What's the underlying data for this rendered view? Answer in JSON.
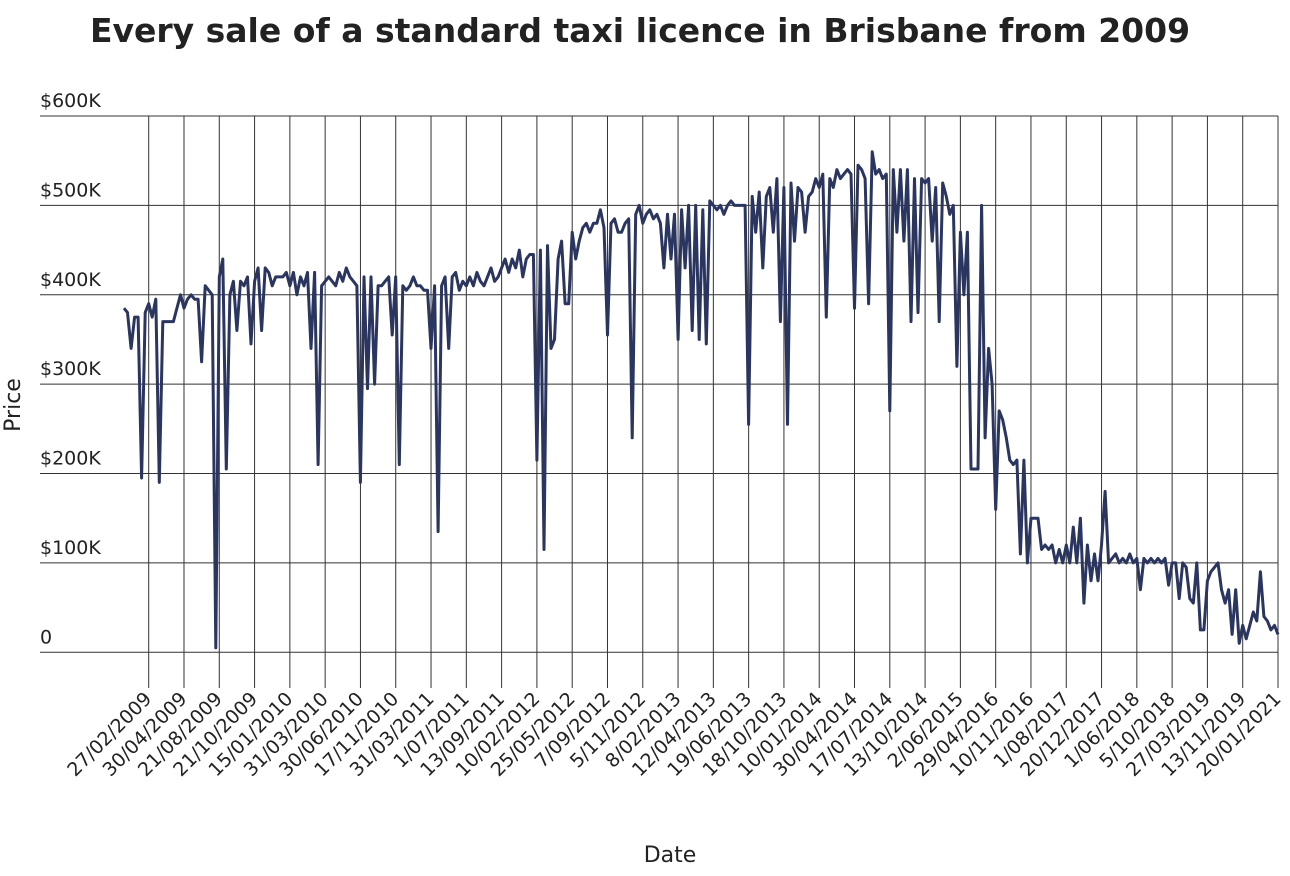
{
  "chart_data": {
    "type": "line",
    "title": "Every sale of a standard taxi licence in Brisbane from 2009",
    "xlabel": "Date",
    "ylabel": "Price",
    "grid": true,
    "categories": [
      null,
      null,
      null,
      null,
      null,
      null,
      null,
      "27/02/2009",
      null,
      null,
      null,
      null,
      null,
      null,
      null,
      null,
      null,
      "30/04/2009",
      null,
      null,
      null,
      null,
      null,
      null,
      null,
      null,
      null,
      "21/08/2009",
      null,
      null,
      null,
      null,
      null,
      null,
      null,
      null,
      null,
      "21/10/2009",
      null,
      null,
      null,
      null,
      null,
      null,
      null,
      null,
      null,
      "15/01/2010",
      null,
      null,
      null,
      null,
      null,
      null,
      null,
      null,
      null,
      "31/03/2010",
      null,
      null,
      null,
      null,
      null,
      null,
      null,
      null,
      null,
      "30/06/2010",
      null,
      null,
      null,
      null,
      null,
      null,
      null,
      null,
      null,
      "17/11/2010",
      null,
      null,
      null,
      null,
      null,
      null,
      null,
      null,
      null,
      "31/03/2011",
      null,
      null,
      null,
      null,
      null,
      null,
      null,
      null,
      null,
      "1/07/2011",
      null,
      null,
      null,
      null,
      null,
      null,
      null,
      null,
      null,
      "13/09/2011",
      null,
      null,
      null,
      null,
      null,
      null,
      null,
      null,
      null,
      "10/02/2012",
      null,
      null,
      null,
      null,
      null,
      null,
      null,
      null,
      null,
      "25/05/2012",
      null,
      null,
      null,
      null,
      null,
      null,
      null,
      null,
      null,
      "7/09/2012",
      null,
      null,
      null,
      null,
      null,
      null,
      null,
      null,
      null,
      "5/11/2012",
      null,
      null,
      null,
      null,
      null,
      null,
      null,
      null,
      null,
      "8/02/2013",
      null,
      null,
      null,
      null,
      null,
      null,
      null,
      null,
      null,
      "12/04/2013",
      null,
      null,
      null,
      null,
      null,
      null,
      null,
      null,
      null,
      "19/06/2013",
      null,
      null,
      null,
      null,
      null,
      null,
      null,
      null,
      null,
      "18/10/2013",
      null,
      null,
      null,
      null,
      null,
      null,
      null,
      null,
      null,
      "10/01/2014",
      null,
      null,
      null,
      null,
      null,
      null,
      null,
      null,
      null,
      "30/04/2014",
      null,
      null,
      null,
      null,
      null,
      null,
      null,
      null,
      null,
      "17/07/2014",
      null,
      null,
      null,
      null,
      null,
      null,
      null,
      null,
      null,
      "13/10/2014",
      null,
      null,
      null,
      null,
      null,
      null,
      null,
      null,
      null,
      "2/06/2015",
      null,
      null,
      null,
      null,
      null,
      null,
      null,
      null,
      null,
      "29/04/2016",
      null,
      null,
      null,
      null,
      null,
      null,
      null,
      null,
      null,
      "10/11/2016",
      null,
      null,
      null,
      null,
      null,
      null,
      null,
      null,
      null,
      "1/08/2017",
      null,
      null,
      null,
      null,
      null,
      null,
      null,
      null,
      null,
      "20/12/2017",
      null,
      null,
      null,
      null,
      null,
      null,
      null,
      null,
      null,
      "1/06/2018",
      null,
      null,
      null,
      null,
      null,
      null,
      null,
      null,
      null,
      "5/10/2018",
      null,
      null,
      null,
      null,
      null,
      null,
      null,
      null,
      null,
      "27/03/2019",
      null,
      null,
      null,
      null,
      null,
      null,
      null,
      null,
      null,
      "13/11/2019",
      null,
      null,
      null,
      null,
      null,
      null,
      null,
      null,
      null,
      "20/01/2021"
    ],
    "series": [
      {
        "name": "Price",
        "color": "#2b3660",
        "values": [
          385000,
          380000,
          340000,
          375000,
          375000,
          195000,
          380000,
          390000,
          375000,
          395000,
          190000,
          370000,
          370000,
          370000,
          370000,
          385000,
          400000,
          385000,
          395000,
          400000,
          395000,
          395000,
          325000,
          410000,
          405000,
          400000,
          5000,
          420000,
          440000,
          205000,
          400000,
          415000,
          360000,
          415000,
          410000,
          420000,
          345000,
          415000,
          430000,
          360000,
          430000,
          425000,
          410000,
          420000,
          420000,
          420000,
          425000,
          410000,
          425000,
          400000,
          420000,
          410000,
          425000,
          340000,
          425000,
          210000,
          410000,
          415000,
          420000,
          415000,
          410000,
          425000,
          415000,
          430000,
          420000,
          415000,
          410000,
          190000,
          420000,
          295000,
          420000,
          300000,
          410000,
          410000,
          415000,
          420000,
          355000,
          420000,
          210000,
          410000,
          405000,
          410000,
          420000,
          410000,
          410000,
          405000,
          405000,
          340000,
          410000,
          135000,
          410000,
          420000,
          340000,
          420000,
          425000,
          405000,
          415000,
          410000,
          420000,
          410000,
          425000,
          415000,
          410000,
          420000,
          430000,
          415000,
          420000,
          430000,
          440000,
          425000,
          440000,
          430000,
          450000,
          420000,
          440000,
          445000,
          445000,
          215000,
          450000,
          115000,
          455000,
          340000,
          350000,
          440000,
          460000,
          390000,
          390000,
          470000,
          440000,
          460000,
          475000,
          480000,
          470000,
          480000,
          480000,
          495000,
          475000,
          355000,
          480000,
          485000,
          470000,
          470000,
          480000,
          485000,
          240000,
          490000,
          500000,
          480000,
          490000,
          495000,
          485000,
          490000,
          480000,
          430000,
          490000,
          440000,
          490000,
          350000,
          495000,
          430000,
          500000,
          360000,
          500000,
          350000,
          495000,
          345000,
          505000,
          500000,
          495000,
          500000,
          490000,
          500000,
          505000,
          500000,
          500000,
          500000,
          500000,
          255000,
          510000,
          470000,
          515000,
          430000,
          510000,
          520000,
          470000,
          530000,
          370000,
          520000,
          255000,
          525000,
          460000,
          520000,
          515000,
          470000,
          510000,
          515000,
          530000,
          520000,
          535000,
          375000,
          530000,
          520000,
          540000,
          530000,
          535000,
          540000,
          535000,
          385000,
          545000,
          540000,
          530000,
          390000,
          560000,
          535000,
          540000,
          530000,
          535000,
          270000,
          540000,
          470000,
          540000,
          460000,
          540000,
          370000,
          530000,
          380000,
          530000,
          525000,
          530000,
          460000,
          520000,
          370000,
          525000,
          510000,
          490000,
          500000,
          320000,
          470000,
          400000,
          470000,
          205000,
          205000,
          205000,
          500000,
          240000,
          340000,
          300000,
          160000,
          270000,
          260000,
          240000,
          215000,
          210000,
          215000,
          110000,
          215000,
          100000,
          150000,
          150000,
          150000,
          115000,
          120000,
          115000,
          120000,
          100000,
          115000,
          100000,
          120000,
          100000,
          140000,
          100000,
          150000,
          55000,
          120000,
          80000,
          110000,
          80000,
          120000,
          180000,
          100000,
          105000,
          110000,
          100000,
          105000,
          100000,
          110000,
          100000,
          105000,
          70000,
          105000,
          100000,
          105000,
          100000,
          105000,
          100000,
          105000,
          75000,
          100000,
          100000,
          60000,
          100000,
          95000,
          60000,
          55000,
          100000,
          25000,
          25000,
          80000,
          90000,
          95000,
          100000,
          70000,
          55000,
          70000,
          20000,
          70000,
          10000,
          30000,
          15000,
          30000,
          45000,
          35000,
          90000,
          40000,
          35000,
          25000,
          30000,
          20000
        ]
      }
    ],
    "ylim": [
      -40000,
      600000
    ],
    "yticks": [
      0,
      {
        "value": 100000,
        "label": "$100K"
      },
      {
        "value": 200000,
        "label": "$200K"
      },
      {
        "value": 300000,
        "label": "$300K"
      },
      {
        "value": 400000,
        "label": "$400K"
      },
      {
        "value": 500000,
        "label": "$500K"
      },
      {
        "value": 600000,
        "label": "$600K"
      }
    ]
  }
}
